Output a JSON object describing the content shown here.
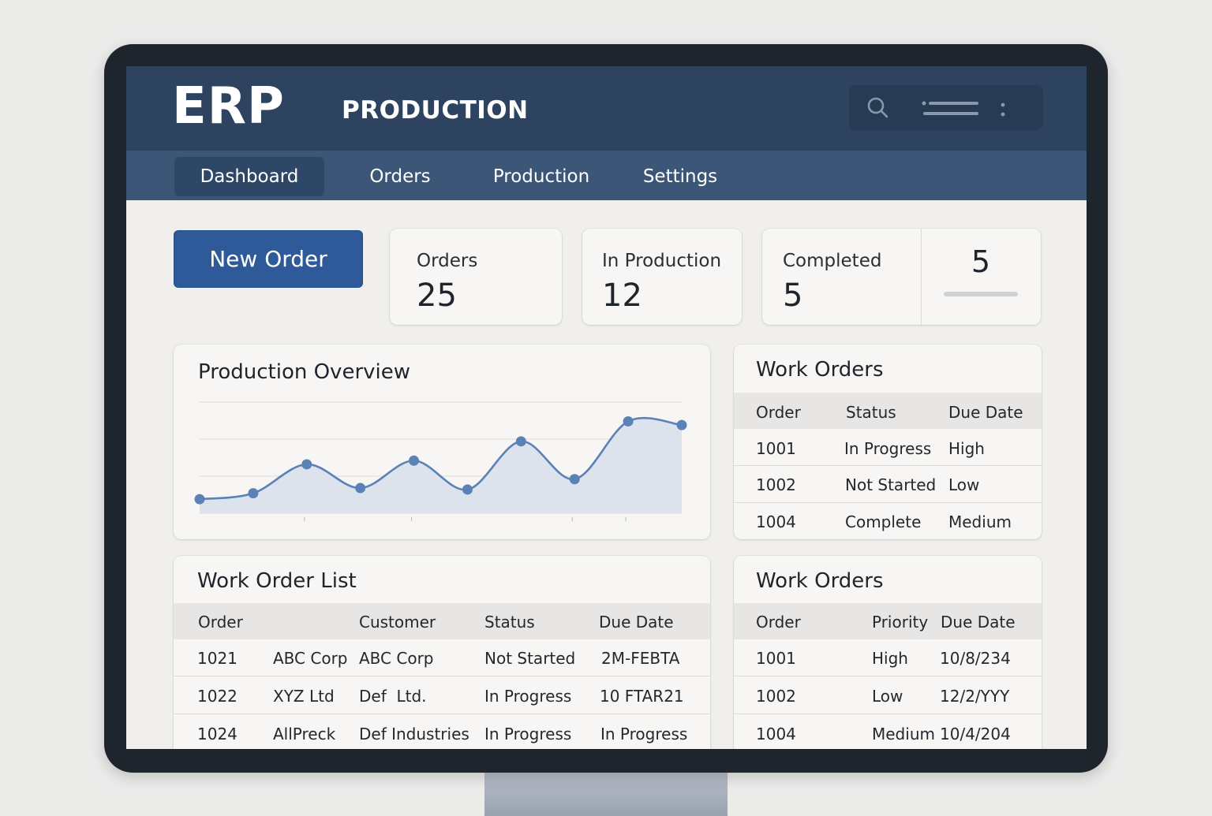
{
  "app": {
    "logo": "ERP",
    "module_title": "PRODUCTION"
  },
  "toolbar_icons": [
    "search-icon",
    "menu-lines-icon",
    "more-vertical-icon"
  ],
  "nav": {
    "items": [
      {
        "label": "Dashboard",
        "active": true
      },
      {
        "label": "Orders",
        "active": false
      },
      {
        "label": "Production",
        "active": false
      },
      {
        "label": "Settings",
        "active": false
      }
    ]
  },
  "actions": {
    "new_order_label": "New Order"
  },
  "stats": [
    {
      "label": "Orders",
      "value": "25"
    },
    {
      "label": "In Production",
      "value": "12"
    },
    {
      "label": "Completed",
      "value": "5",
      "extra_value": "5"
    }
  ],
  "overview": {
    "title": "Production Overview",
    "chart_data": {
      "type": "area",
      "x": [
        1,
        2,
        3,
        4,
        5,
        6,
        7,
        8,
        9,
        10
      ],
      "values": [
        19,
        27,
        66,
        34,
        71,
        32,
        97,
        46,
        124,
        119
      ],
      "ylim": [
        0,
        150
      ],
      "grid": true,
      "line_color": "#5b82b6",
      "fill_color": "#dde3ec"
    }
  },
  "work_orders_top": {
    "title": "Work Orders",
    "columns": [
      "Order",
      "Status",
      "Due Date"
    ],
    "rows": [
      [
        "1001",
        "In Progress",
        "High"
      ],
      [
        "1002",
        "Not Started",
        "Low"
      ],
      [
        "1004",
        "Complete",
        "Medium"
      ]
    ]
  },
  "work_order_list": {
    "title": "Work Order List",
    "columns": [
      "Order",
      "",
      "Customer",
      "Status",
      "Due Date"
    ],
    "rows": [
      [
        "1021",
        "ABC Corp",
        "ABC Corp",
        "Not Started",
        "2M-FEBTA"
      ],
      [
        "1022",
        "XYZ Ltd",
        "Def  Ltd.",
        "In Progress",
        "10 FTAR21"
      ],
      [
        "1024",
        "AllPreck",
        "Def Industries",
        "In Progress",
        "In Progress"
      ]
    ]
  },
  "work_orders_bottom": {
    "title": "Work Orders",
    "columns": [
      "Order",
      "Priority",
      "Due Date"
    ],
    "rows": [
      [
        "1001",
        "High",
        "10/8/234"
      ],
      [
        "1002",
        "Low",
        "12/2/YYY"
      ],
      [
        "1004",
        "Medium",
        "10/4/204"
      ]
    ]
  },
  "colors": {
    "topbar": "#2e4360",
    "navbar": "#3b5677",
    "primary_button": "#2f5a99",
    "chart_line": "#5b82b6"
  }
}
